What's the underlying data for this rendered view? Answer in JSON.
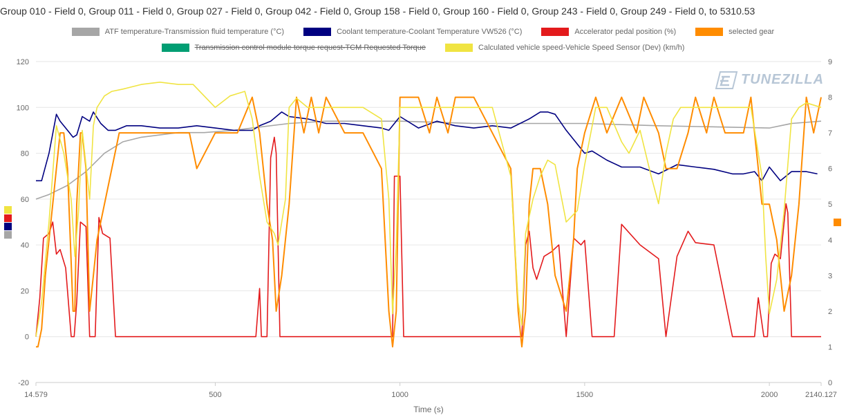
{
  "chart_data": {
    "type": "line",
    "title": "Group 010 - Field 0, Group 011 - Field 0, Group 027 - Field 0, Group 042 - Field 0, Group 158 - Field 0, Group 160 - Field 0, Group 243 - Field 0, Group 249 - Field 0, to 5310.53",
    "xlabel": "Time (s)",
    "xlim": [
      14.579,
      2140.127
    ],
    "x_ticks": [
      "14.579",
      "500",
      "1000",
      "1500",
      "2000",
      "2140.127"
    ],
    "x_tick_values": [
      14.579,
      500,
      1000,
      1500,
      2000,
      2140.127
    ],
    "ylim_left": [
      -20,
      120
    ],
    "y_ticks_left": [
      "-20",
      "0",
      "20",
      "40",
      "60",
      "80",
      "100",
      "120"
    ],
    "ylim_right": [
      0,
      9
    ],
    "y_ticks_right": [
      "0",
      "1",
      "2",
      "3",
      "4",
      "5",
      "6",
      "7",
      "8",
      "9"
    ],
    "grid": true,
    "legend_position": "top",
    "watermark": "TUNEZILLA",
    "series": [
      {
        "name": "ATF temperature-Transmission fluid temperature (°C)",
        "color": "#a6a6a6",
        "axis": "left",
        "visible": true,
        "x": [
          14.579,
          50,
          100,
          150,
          200,
          250,
          300,
          400,
          470,
          550,
          600,
          700,
          800,
          1000,
          1200,
          1500,
          1700,
          2000,
          2060,
          2140.127
        ],
        "y": [
          60,
          62,
          66,
          72,
          80,
          85,
          87,
          89,
          89,
          90,
          91,
          93,
          94,
          94,
          93,
          93,
          92,
          91,
          93,
          94
        ]
      },
      {
        "name": "Coolant temperature-Coolant Temperature VW526 (°C)",
        "color": "#000080",
        "axis": "left",
        "visible": true,
        "x": [
          14.579,
          30,
          50,
          70,
          80,
          100,
          115,
          125,
          140,
          160,
          170,
          190,
          210,
          230,
          260,
          300,
          350,
          400,
          450,
          500,
          550,
          600,
          620,
          650,
          680,
          700,
          750,
          800,
          850,
          900,
          950,
          970,
          980,
          1000,
          1050,
          1100,
          1150,
          1200,
          1250,
          1300,
          1350,
          1380,
          1400,
          1420,
          1450,
          1480,
          1500,
          1520,
          1560,
          1600,
          1650,
          1700,
          1750,
          1800,
          1850,
          1900,
          1930,
          1960,
          1980,
          2000,
          2030,
          2060,
          2100,
          2130
        ],
        "y": [
          68,
          68,
          80,
          97,
          94,
          90,
          87,
          88,
          96,
          94,
          98,
          93,
          90,
          90,
          92,
          92,
          91,
          91,
          92,
          91,
          90,
          90,
          92,
          94,
          98,
          96,
          95,
          93,
          93,
          92,
          91,
          90,
          92,
          96,
          91,
          94,
          92,
          91,
          92,
          91,
          95,
          98,
          98,
          97,
          90,
          84,
          80,
          81,
          77,
          74,
          74,
          71,
          75,
          74,
          73,
          71,
          71,
          72,
          68,
          74,
          68,
          72,
          72,
          71
        ]
      },
      {
        "name": "Accelerator pedal position (%)",
        "color": "#e31a1c",
        "axis": "left",
        "visible": true,
        "x": [
          14.579,
          25,
          35,
          50,
          60,
          70,
          80,
          95,
          110,
          118,
          125,
          135,
          150,
          160,
          175,
          185,
          195,
          205,
          215,
          230,
          240,
          300,
          400,
          500,
          600,
          610,
          620,
          625,
          640,
          650,
          660,
          665,
          675,
          680,
          700,
          800,
          900,
          970,
          980,
          985,
          1000,
          1010,
          1100,
          1200,
          1300,
          1330,
          1340,
          1350,
          1360,
          1370,
          1390,
          1410,
          1430,
          1450,
          1470,
          1490,
          1500,
          1520,
          1540,
          1560,
          1580,
          1600,
          1650,
          1700,
          1720,
          1750,
          1780,
          1800,
          1850,
          1900,
          1960,
          1970,
          1985,
          1995,
          2005,
          2015,
          2030,
          2045,
          2050,
          2060,
          2070,
          2100,
          2140.127
        ],
        "y": [
          0,
          17,
          43,
          45,
          50,
          36,
          38,
          30,
          0,
          0,
          15,
          50,
          48,
          0,
          0,
          52,
          45,
          44,
          43,
          0,
          0,
          0,
          0,
          0,
          0,
          0,
          21,
          0,
          0,
          78,
          87,
          80,
          0,
          0,
          0,
          0,
          0,
          0,
          0,
          70,
          70,
          0,
          0,
          0,
          0,
          0,
          40,
          46,
          30,
          25,
          35,
          37,
          40,
          0,
          43,
          40,
          42,
          0,
          0,
          0,
          0,
          49,
          40,
          34,
          0,
          35,
          46,
          41,
          40,
          0,
          0,
          17,
          0,
          0,
          32,
          36,
          34,
          58,
          54,
          0,
          0,
          0,
          0
        ]
      },
      {
        "name": "selected gear",
        "color": "#ff8c00",
        "axis": "right",
        "visible": true,
        "x": [
          14.579,
          20,
          30,
          40,
          50,
          60,
          70,
          80,
          90,
          100,
          115,
          120,
          125,
          135,
          140,
          150,
          160,
          170,
          180,
          200,
          220,
          240,
          300,
          400,
          430,
          450,
          500,
          560,
          600,
          620,
          640,
          655,
          665,
          680,
          700,
          720,
          740,
          760,
          780,
          800,
          850,
          900,
          950,
          970,
          980,
          990,
          1000,
          1020,
          1050,
          1080,
          1100,
          1130,
          1150,
          1200,
          1250,
          1300,
          1320,
          1330,
          1340,
          1350,
          1360,
          1380,
          1400,
          1420,
          1450,
          1470,
          1480,
          1500,
          1530,
          1560,
          1600,
          1640,
          1660,
          1700,
          1720,
          1750,
          1780,
          1800,
          1830,
          1850,
          1880,
          1900,
          1930,
          1950,
          1980,
          2000,
          2020,
          2040,
          2060,
          2080,
          2100,
          2120,
          2140.127
        ],
        "y": [
          1,
          1,
          1.5,
          3,
          4,
          5,
          6,
          7,
          7,
          6,
          2,
          2,
          5,
          7,
          7,
          6,
          2,
          3,
          4,
          5,
          6,
          7,
          7,
          7,
          7,
          6,
          7,
          7,
          8,
          7,
          5,
          4,
          2,
          3,
          5,
          8,
          7,
          8,
          7,
          8,
          7,
          7,
          6,
          2,
          1,
          2,
          8,
          8,
          8,
          7,
          8,
          7,
          8,
          8,
          7,
          6,
          2,
          1,
          2,
          5,
          6,
          6,
          5,
          3,
          2,
          4,
          6,
          7,
          8,
          7,
          8,
          7,
          8,
          7,
          6,
          6,
          7,
          8,
          7,
          8,
          7,
          7,
          7,
          8,
          5,
          5,
          4,
          2,
          3,
          5,
          8,
          7,
          8
        ]
      },
      {
        "name": "Transmission control module torque request-TCM Requested Torque",
        "color": "#009e73",
        "axis": "left",
        "visible": false,
        "x": [],
        "y": []
      },
      {
        "name": "Calculated vehicle speed-Vehicle Speed Sensor (Dev) (km/h)",
        "color": "#f0e442",
        "axis": "left",
        "visible": true,
        "x": [
          14.579,
          30,
          50,
          70,
          90,
          110,
          120,
          130,
          140,
          160,
          170,
          180,
          200,
          220,
          250,
          300,
          350,
          400,
          440,
          470,
          500,
          540,
          560,
          580,
          600,
          620,
          640,
          660,
          670,
          690,
          700,
          720,
          750,
          800,
          850,
          900,
          950,
          970,
          980,
          990,
          1000,
          1050,
          1100,
          1150,
          1200,
          1250,
          1300,
          1320,
          1330,
          1340,
          1360,
          1380,
          1400,
          1420,
          1450,
          1480,
          1500,
          1530,
          1560,
          1600,
          1620,
          1650,
          1680,
          1700,
          1720,
          1740,
          1760,
          1800,
          1850,
          1900,
          1950,
          1980,
          1990,
          2000,
          2020,
          2040,
          2060,
          2080,
          2100,
          2140.127
        ],
        "y": [
          0,
          15,
          50,
          92,
          80,
          60,
          35,
          55,
          90,
          60,
          92,
          100,
          105,
          107,
          108,
          110,
          111,
          110,
          110,
          105,
          100,
          105,
          106,
          107,
          95,
          70,
          50,
          45,
          40,
          60,
          100,
          104,
          100,
          100,
          100,
          100,
          95,
          60,
          10,
          40,
          100,
          100,
          100,
          100,
          100,
          100,
          70,
          15,
          5,
          45,
          60,
          70,
          77,
          75,
          50,
          55,
          75,
          100,
          100,
          85,
          80,
          90,
          70,
          58,
          80,
          95,
          100,
          100,
          100,
          100,
          100,
          70,
          35,
          10,
          25,
          55,
          95,
          100,
          102,
          100
        ]
      }
    ]
  }
}
